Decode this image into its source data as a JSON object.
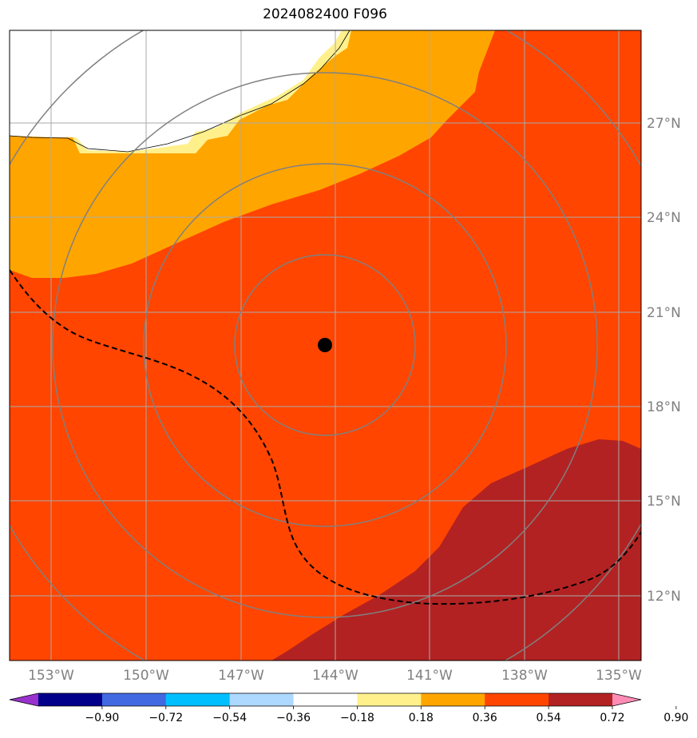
{
  "title": "2024082400 F096",
  "map": {
    "lon_labels": [
      "153°W",
      "150°W",
      "147°W",
      "144°W",
      "141°W",
      "138°W",
      "135°W"
    ],
    "lat_labels": [
      "27°N",
      "24°N",
      "21°N",
      "18°N",
      "15°N",
      "12°N"
    ],
    "center_marker": {
      "lon": -144.3,
      "lat": 20.0
    },
    "range_rings": 4,
    "gridline_color": "#aaaaaa",
    "ring_color": "#808080",
    "fill_colors": {
      "land_white": "#ffffff",
      "band_0_18_0_36": "#fff08c",
      "band_0_36_0_54": "#ffa500",
      "band_0_54_0_72": "#ff4500",
      "band_0_72_0_90": "#b22222"
    }
  },
  "colorbar": {
    "colors": [
      "#9932cc",
      "#00008b",
      "#4169e1",
      "#00bfff",
      "#add8ff",
      "#ffffff",
      "#fff08c",
      "#ffa500",
      "#ff4500",
      "#b22222",
      "#ff8cb4"
    ],
    "ticks": [
      "−0.90",
      "−0.72",
      "−0.54",
      "−0.36",
      "−0.18",
      "0.18",
      "0.36",
      "0.54",
      "0.72",
      "0.90"
    ]
  }
}
